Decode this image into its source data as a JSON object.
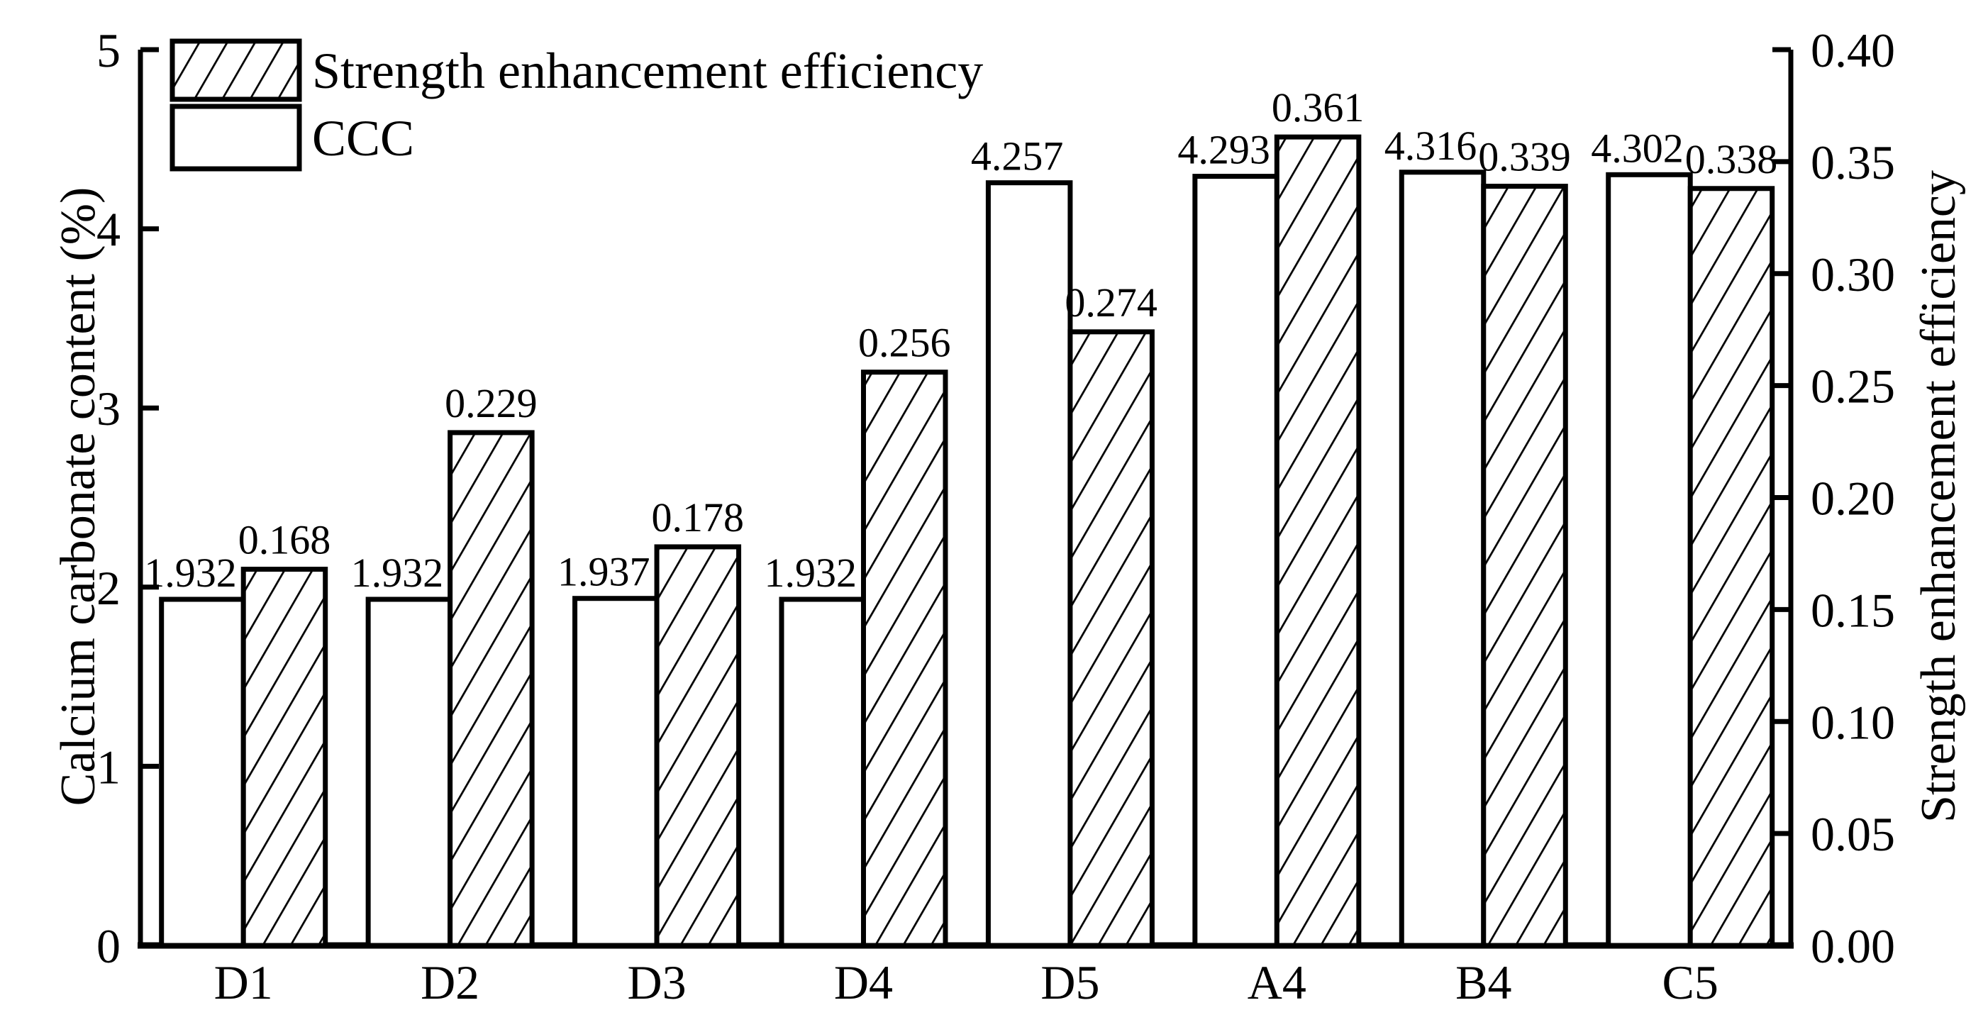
{
  "chart_data": {
    "type": "bar",
    "title": "",
    "categories": [
      "D1",
      "D2",
      "D3",
      "D4",
      "D5",
      "A4",
      "B4",
      "C5"
    ],
    "series": [
      {
        "name": "CCC",
        "axis": "left",
        "fill": "plain",
        "values": [
          1.932,
          1.932,
          1.937,
          1.932,
          4.257,
          4.293,
          4.316,
          4.302
        ],
        "labels": [
          "1.932",
          "1.932",
          "1.937",
          "1.932",
          "4.257",
          "4.293",
          "4.316",
          "4.302"
        ]
      },
      {
        "name": "Strength enhancement efficiency",
        "axis": "right",
        "fill": "hatch",
        "values": [
          0.168,
          0.229,
          0.178,
          0.256,
          0.274,
          0.361,
          0.339,
          0.338
        ],
        "labels": [
          "0.168",
          "0.229",
          "0.178",
          "0.256",
          "0.274",
          "0.361",
          "0.339",
          "0.338"
        ]
      }
    ],
    "left_axis": {
      "label": "Calcium carbonate content (%)",
      "min": 0,
      "max": 5,
      "ticks": [
        "0",
        "1",
        "2",
        "3",
        "4",
        "5"
      ]
    },
    "right_axis": {
      "label": "Strength enhancement efficiency",
      "min": 0.0,
      "max": 0.4,
      "ticks": [
        "0.00",
        "0.05",
        "0.10",
        "0.15",
        "0.20",
        "0.25",
        "0.30",
        "0.35",
        "0.40"
      ]
    },
    "legend": {
      "position": "top-left",
      "entries": [
        {
          "label": "Strength enhancement efficiency",
          "pattern": "hatch"
        },
        {
          "label": "CCC",
          "pattern": "plain"
        }
      ]
    },
    "grid": "off",
    "colors": {
      "foreground": "#000000",
      "background": "#ffffff"
    }
  }
}
